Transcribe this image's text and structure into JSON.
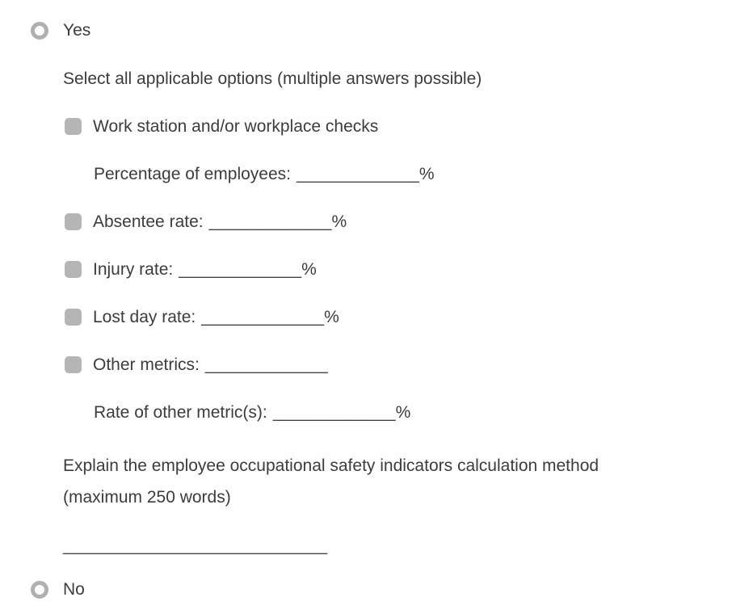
{
  "colors": {
    "background": "#ffffff",
    "text": "#3c3c3c",
    "checkbox_fill": "#b5b5b5",
    "radio_ring": "#b0b0b0"
  },
  "question": {
    "options": [
      {
        "label": "Yes",
        "selected": false
      },
      {
        "label": "No",
        "selected": false
      }
    ],
    "yes_section": {
      "prompt": "Select all applicable options (multiple answers possible)",
      "rows": [
        {
          "type": "checkbox",
          "label": "Work station and/or workplace checks",
          "blank": "",
          "unit": "",
          "checked": false
        },
        {
          "type": "sub",
          "label": "Percentage of employees:",
          "blank": "_____________",
          "unit": "%"
        },
        {
          "type": "checkbox",
          "label": "Absentee rate:",
          "blank": "_____________",
          "unit": "%",
          "checked": false
        },
        {
          "type": "checkbox",
          "label": "Injury rate:",
          "blank": "_____________",
          "unit": "%",
          "checked": false
        },
        {
          "type": "checkbox",
          "label": "Lost day rate:",
          "blank": "_____________",
          "unit": "%",
          "checked": false
        },
        {
          "type": "checkbox",
          "label": "Other metrics:",
          "blank": "_____________",
          "unit": "",
          "checked": false
        },
        {
          "type": "sub",
          "label": "Rate of other metric(s):",
          "blank": "_____________",
          "unit": "%"
        }
      ],
      "explain_prompt": "Explain the employee occupational safety indicators calculation method\n(maximum 250 words)",
      "answer_blank": "____________________________"
    }
  }
}
